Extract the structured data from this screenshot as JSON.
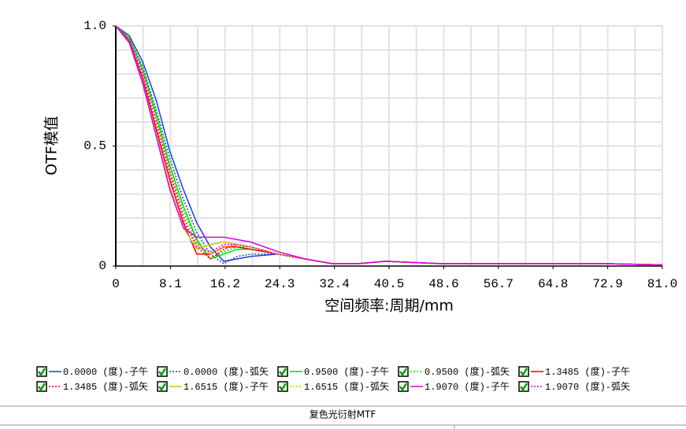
{
  "chart_data": {
    "type": "line",
    "title": "复色光衍射MTF",
    "xlabel": "空间频率:周期/mm",
    "ylabel": "OTF模值",
    "xlim": [
      0,
      81
    ],
    "ylim": [
      0,
      1
    ],
    "xticks": [
      0,
      8.1,
      16.2,
      24.3,
      32.4,
      40.5,
      48.6,
      56.7,
      64.8,
      72.9,
      {
        "value": 81,
        "label": "81.0"
      }
    ],
    "yticks": [
      0,
      0.5,
      {
        "value": 1,
        "label": "1.0"
      }
    ],
    "xgrid": [
      4.05,
      8.1,
      12.15,
      16.2,
      20.25,
      24.3,
      28.35,
      32.4,
      36.45,
      40.5,
      44.55,
      48.6,
      52.65,
      56.7,
      60.75,
      64.8,
      68.85,
      72.9,
      76.95,
      81
    ],
    "ygrid": [
      0.1,
      0.2,
      0.3,
      0.4,
      0.5,
      0.6,
      0.7,
      0.8,
      0.9,
      1
    ],
    "grid": true,
    "x": [
      0,
      2,
      4,
      6,
      8,
      10,
      12,
      14,
      16,
      18,
      20,
      24,
      28,
      32,
      36,
      40,
      48,
      56,
      64,
      72,
      81
    ],
    "series": [
      {
        "name": "0.0000 (度)-子午",
        "color": "#1f3fd0",
        "style": "solid",
        "values": [
          1,
          0.96,
          0.85,
          0.69,
          0.48,
          0.32,
          0.18,
          0.08,
          0.02,
          0.03,
          0.04,
          0.05,
          0.03,
          0.01,
          0.01,
          0.02,
          0.01,
          0.01,
          0.01,
          0.01,
          0.005
        ]
      },
      {
        "name": "0.0000 (度)-弧矢",
        "color": "#1f3fd0",
        "style": "dotted",
        "values": [
          1,
          0.95,
          0.83,
          0.65,
          0.45,
          0.28,
          0.14,
          0.05,
          0.01,
          0.04,
          0.05,
          0.05,
          0.03,
          0.01,
          0.01,
          0.02,
          0.01,
          0.01,
          0.01,
          0.01,
          0.005
        ]
      },
      {
        "name": "0.9500 (度)-子午",
        "color": "#00dd00",
        "style": "solid",
        "values": [
          1,
          0.95,
          0.82,
          0.63,
          0.42,
          0.25,
          0.11,
          0.03,
          0.05,
          0.07,
          0.07,
          0.05,
          0.03,
          0.01,
          0.01,
          0.02,
          0.01,
          0.01,
          0.01,
          0.01,
          0.005
        ]
      },
      {
        "name": "0.9500 (度)-弧矢",
        "color": "#00dd00",
        "style": "dotted",
        "values": [
          1,
          0.95,
          0.81,
          0.62,
          0.4,
          0.23,
          0.1,
          0.03,
          0.06,
          0.08,
          0.08,
          0.05,
          0.03,
          0.01,
          0.01,
          0.02,
          0.01,
          0.01,
          0.01,
          0.01,
          0.005
        ]
      },
      {
        "name": "1.3485 (度)-子午",
        "color": "#ff0000",
        "style": "solid",
        "values": [
          1,
          0.94,
          0.78,
          0.57,
          0.36,
          0.18,
          0.05,
          0.05,
          0.08,
          0.08,
          0.07,
          0.05,
          0.03,
          0.01,
          0.01,
          0.02,
          0.01,
          0.01,
          0.01,
          0.01,
          0.005
        ]
      },
      {
        "name": "1.3485 (度)-弧矢",
        "color": "#ff0000",
        "style": "dotted",
        "values": [
          1,
          0.94,
          0.8,
          0.6,
          0.39,
          0.21,
          0.08,
          0.03,
          0.07,
          0.09,
          0.08,
          0.05,
          0.03,
          0.01,
          0.01,
          0.02,
          0.01,
          0.01,
          0.01,
          0.01,
          0.005
        ]
      },
      {
        "name": "1.6515 (度)-子午",
        "color": "#c8c800",
        "style": "solid",
        "values": [
          1,
          0.93,
          0.76,
          0.55,
          0.33,
          0.16,
          0.07,
          0.09,
          0.1,
          0.09,
          0.08,
          0.05,
          0.03,
          0.01,
          0.01,
          0.02,
          0.01,
          0.01,
          0.01,
          0.01,
          0.005
        ]
      },
      {
        "name": "1.6515 (度)-弧矢",
        "color": "#c8c800",
        "style": "dotted",
        "values": [
          1,
          0.94,
          0.79,
          0.59,
          0.38,
          0.2,
          0.09,
          0.05,
          0.08,
          0.09,
          0.08,
          0.05,
          0.03,
          0.01,
          0.01,
          0.02,
          0.01,
          0.01,
          0.01,
          0.01,
          0.005
        ]
      },
      {
        "name": "1.9070 (度)-子午",
        "color": "#e000e0",
        "style": "solid",
        "values": [
          1,
          0.93,
          0.76,
          0.54,
          0.32,
          0.16,
          0.12,
          0.12,
          0.12,
          0.11,
          0.1,
          0.06,
          0.03,
          0.01,
          0.01,
          0.02,
          0.01,
          0.01,
          0.01,
          0.01,
          0.005
        ]
      },
      {
        "name": "1.9070 (度)-弧矢",
        "color": "#e000e0",
        "style": "dotted",
        "values": [
          1,
          0.94,
          0.79,
          0.58,
          0.37,
          0.19,
          0.08,
          0.06,
          0.09,
          0.09,
          0.08,
          0.05,
          0.03,
          0.01,
          0.01,
          0.02,
          0.01,
          0.01,
          0.01,
          0.01,
          0.005
        ]
      }
    ]
  }
}
